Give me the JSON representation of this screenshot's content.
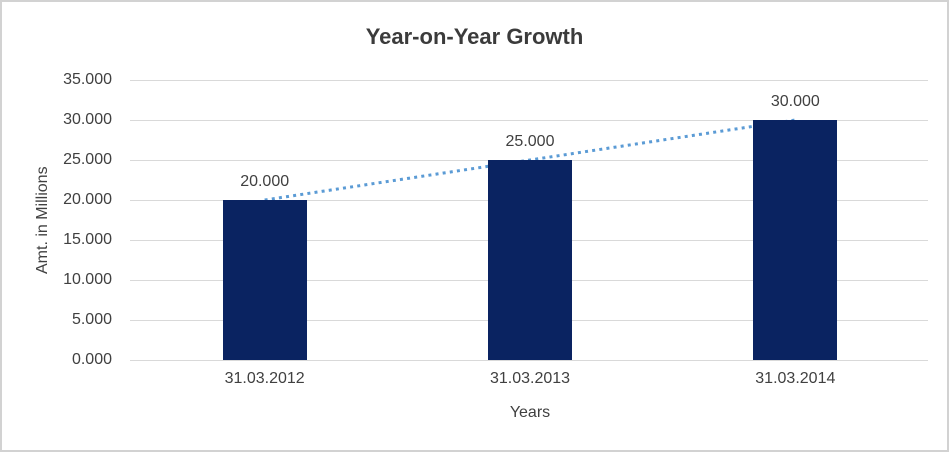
{
  "chart_data": {
    "type": "bar",
    "title": "Year-on-Year Growth",
    "xlabel": "Years",
    "ylabel": "Amt. in Millions",
    "categories": [
      "31.03.2012",
      "31.03.2013",
      "31.03.2014"
    ],
    "values": [
      20,
      25,
      30
    ],
    "data_labels": [
      "20.000",
      "25.000",
      "30.000"
    ],
    "y_ticks": [
      "35.000",
      "30.000",
      "25.000",
      "20.000",
      "15.000",
      "10.000",
      "5.000",
      "0.000"
    ],
    "ylim": [
      0,
      35
    ],
    "y_step": 5,
    "grid": "horizontal",
    "legend": "none",
    "bar_color": "#0a2361",
    "trendline": {
      "type": "linear",
      "style": "dotted",
      "color": "#5b9bd5",
      "start_value": 20,
      "end_value": 30
    }
  },
  "colors": {
    "background": "#ffffff",
    "frame_border": "#d2d2d2",
    "gridline": "#d9d9d9",
    "text": "#404040",
    "title_text": "#3b3b3b"
  }
}
